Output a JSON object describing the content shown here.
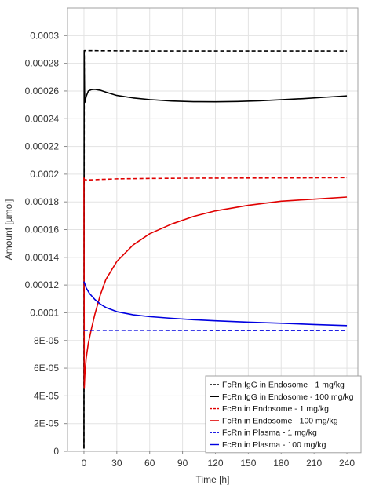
{
  "chart_data": {
    "type": "line",
    "title": "",
    "xlabel": "Time [h]",
    "ylabel": "Amount [µmol]",
    "xlim": [
      -15,
      250
    ],
    "ylim": [
      0,
      0.00032
    ],
    "xticks": [
      0,
      30,
      60,
      90,
      120,
      150,
      180,
      210,
      240
    ],
    "xtick_labels": [
      "0",
      "30",
      "60",
      "90",
      "120",
      "150",
      "180",
      "210",
      "240"
    ],
    "yticks": [
      0,
      2e-05,
      4e-05,
      6e-05,
      8e-05,
      0.0001,
      0.00012,
      0.00014,
      0.00016,
      0.00018,
      0.0002,
      0.00022,
      0.00024,
      0.00026,
      0.00028,
      0.0003
    ],
    "ytick_labels": [
      "0",
      "2E-05",
      "4E-05",
      "6E-05",
      "8E-05",
      "0.0001",
      "0.00012",
      "0.00014",
      "0.00016",
      "0.00018",
      "0.0002",
      "0.00022",
      "0.00024",
      "0.00026",
      "0.00028",
      "0.0003"
    ],
    "grid": true,
    "legend_position": "bottom-right",
    "series": [
      {
        "name": "FcRn:IgG in Endosome - 1 mg/kg",
        "color": "#000000",
        "dash": true,
        "x": [
          0,
          0.3,
          1,
          10,
          60,
          120,
          180,
          240
        ],
        "y": [
          2e-06,
          0.000289,
          0.000289,
          0.000289,
          0.0002888,
          0.0002888,
          0.0002888,
          0.0002888
        ]
      },
      {
        "name": "FcRn:IgG in Endosome - 100 mg/kg",
        "color": "#000000",
        "dash": false,
        "x": [
          0,
          0.2,
          0.6,
          1,
          2,
          4,
          7,
          10,
          15,
          20,
          30,
          45,
          60,
          80,
          100,
          120,
          140,
          160,
          180,
          200,
          220,
          240
        ],
        "y": [
          2e-06,
          0.000289,
          0.000258,
          0.000252,
          0.000256,
          0.00026,
          0.000261,
          0.0002612,
          0.0002605,
          0.0002592,
          0.0002568,
          0.000255,
          0.0002538,
          0.0002528,
          0.0002523,
          0.0002522,
          0.0002524,
          0.0002529,
          0.0002537,
          0.0002545,
          0.0002555,
          0.0002565
        ]
      },
      {
        "name": "FcRn in Endosome - 1 mg/kg",
        "color": "#e00000",
        "dash": true,
        "x": [
          0,
          0.5,
          3,
          10,
          30,
          60,
          100,
          150,
          200,
          240
        ],
        "y": [
          0.000197,
          0.000196,
          0.0001958,
          0.000196,
          0.0001966,
          0.0001969,
          0.0001971,
          0.0001972,
          0.0001973,
          0.0001975
        ]
      },
      {
        "name": "FcRn in Endosome - 100 mg/kg",
        "color": "#e00000",
        "dash": false,
        "x": [
          0,
          0.3,
          0.8,
          2,
          4,
          7,
          10,
          15,
          20,
          30,
          45,
          60,
          80,
          100,
          120,
          150,
          180,
          210,
          240
        ],
        "y": [
          0.0001975,
          4.6e-05,
          5.5e-05,
          6.7e-05,
          7.8e-05,
          8.9e-05,
          9.9e-05,
          0.000113,
          0.000124,
          0.000137,
          0.000149,
          0.000157,
          0.000164,
          0.0001695,
          0.0001735,
          0.0001775,
          0.0001805,
          0.000182,
          0.0001835
        ]
      },
      {
        "name": "FcRn in Plasma - 1 mg/kg",
        "color": "#0000e0",
        "dash": true,
        "x": [
          0,
          0.5,
          5,
          20,
          60,
          120,
          180,
          240
        ],
        "y": [
          8.75e-05,
          8.73e-05,
          8.73e-05,
          8.73e-05,
          8.73e-05,
          8.72e-05,
          8.72e-05,
          8.72e-05
        ]
      },
      {
        "name": "FcRn in Plasma - 100 mg/kg",
        "color": "#0000e0",
        "dash": false,
        "x": [
          0,
          0.5,
          2,
          5,
          10,
          15,
          20,
          30,
          45,
          60,
          80,
          100,
          120,
          150,
          180,
          210,
          240
        ],
        "y": [
          0.0001225,
          0.0001215,
          0.000118,
          0.000114,
          0.0001095,
          0.0001062,
          0.0001038,
          0.0001008,
          9.85e-05,
          9.72e-05,
          9.6e-05,
          9.5e-05,
          9.42e-05,
          9.32e-05,
          9.24e-05,
          9.15e-05,
          9.07e-05
        ]
      }
    ]
  }
}
